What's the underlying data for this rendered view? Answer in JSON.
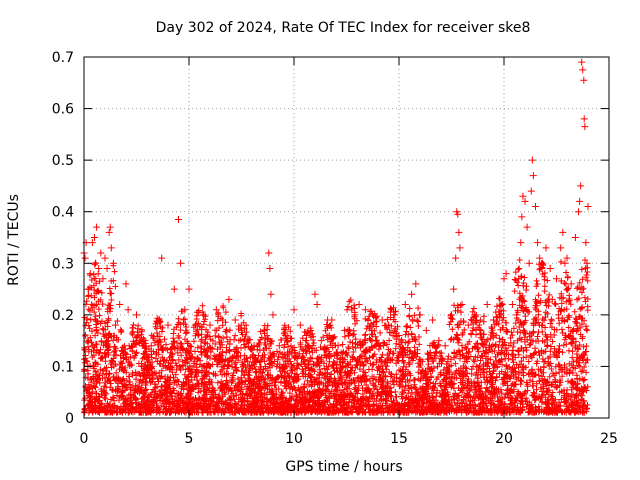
{
  "chart_data": {
    "type": "scatter",
    "title": "Day 302 of 2024, Rate Of TEC Index for receiver ske8",
    "xlabel": "GPS time / hours",
    "ylabel": "ROTI / TECUs",
    "xlim": [
      0,
      25
    ],
    "ylim": [
      0,
      0.7
    ],
    "x_ticks": [
      0,
      5,
      10,
      15,
      20,
      25
    ],
    "y_ticks": [
      0,
      0.1,
      0.2,
      0.3,
      0.4,
      0.5,
      0.6,
      0.7
    ],
    "x_tick_labels": [
      "0",
      "5",
      "10",
      "15",
      "20",
      "25"
    ],
    "y_tick_labels": [
      "0",
      "0.1",
      "0.2",
      "0.3",
      "0.4",
      "0.5",
      "0.6",
      "0.7"
    ],
    "grid": true,
    "marker": "+",
    "series": [
      {
        "name": "ROTI",
        "color": "#ff0000",
        "points": [
          [
            0.0,
            0.32
          ],
          [
            0.05,
            0.31
          ],
          [
            0.1,
            0.34
          ],
          [
            0.2,
            0.25
          ],
          [
            0.3,
            0.28
          ],
          [
            0.4,
            0.34
          ],
          [
            0.5,
            0.35
          ],
          [
            0.55,
            0.3
          ],
          [
            0.6,
            0.37
          ],
          [
            0.7,
            0.29
          ],
          [
            0.8,
            0.32
          ],
          [
            0.9,
            0.27
          ],
          [
            1.0,
            0.31
          ],
          [
            1.1,
            0.29
          ],
          [
            1.2,
            0.36
          ],
          [
            1.25,
            0.37
          ],
          [
            1.3,
            0.33
          ],
          [
            1.4,
            0.3
          ],
          [
            1.5,
            0.18
          ],
          [
            1.7,
            0.22
          ],
          [
            2.0,
            0.26
          ],
          [
            2.1,
            0.21
          ],
          [
            2.5,
            0.2
          ],
          [
            2.9,
            0.15
          ],
          [
            3.2,
            0.14
          ],
          [
            3.7,
            0.31
          ],
          [
            4.0,
            0.18
          ],
          [
            4.3,
            0.25
          ],
          [
            4.5,
            0.385
          ],
          [
            4.6,
            0.3
          ],
          [
            4.8,
            0.21
          ],
          [
            5.0,
            0.25
          ],
          [
            5.3,
            0.18
          ],
          [
            5.7,
            0.2
          ],
          [
            6.0,
            0.18
          ],
          [
            6.3,
            0.21
          ],
          [
            6.6,
            0.19
          ],
          [
            6.9,
            0.23
          ],
          [
            7.2,
            0.19
          ],
          [
            7.5,
            0.17
          ],
          [
            7.8,
            0.15
          ],
          [
            8.1,
            0.14
          ],
          [
            8.5,
            0.12
          ],
          [
            8.8,
            0.32
          ],
          [
            8.85,
            0.29
          ],
          [
            8.9,
            0.24
          ],
          [
            9.0,
            0.2
          ],
          [
            9.3,
            0.14
          ],
          [
            9.6,
            0.16
          ],
          [
            10.0,
            0.21
          ],
          [
            10.3,
            0.18
          ],
          [
            10.6,
            0.16
          ],
          [
            10.9,
            0.14
          ],
          [
            11.0,
            0.24
          ],
          [
            11.1,
            0.22
          ],
          [
            11.3,
            0.15
          ],
          [
            11.6,
            0.19
          ],
          [
            11.8,
            0.19
          ],
          [
            12.1,
            0.14
          ],
          [
            12.4,
            0.17
          ],
          [
            12.6,
            0.16
          ],
          [
            12.9,
            0.2
          ],
          [
            13.1,
            0.22
          ],
          [
            13.4,
            0.21
          ],
          [
            13.7,
            0.17
          ],
          [
            13.9,
            0.15
          ],
          [
            14.2,
            0.19
          ],
          [
            14.5,
            0.18
          ],
          [
            14.8,
            0.2
          ],
          [
            15.0,
            0.16
          ],
          [
            15.3,
            0.22
          ],
          [
            15.6,
            0.24
          ],
          [
            15.8,
            0.26
          ],
          [
            16.0,
            0.2
          ],
          [
            16.3,
            0.17
          ],
          [
            16.6,
            0.19
          ],
          [
            16.9,
            0.15
          ],
          [
            17.2,
            0.14
          ],
          [
            17.5,
            0.2
          ],
          [
            17.6,
            0.25
          ],
          [
            17.7,
            0.31
          ],
          [
            17.75,
            0.4
          ],
          [
            17.8,
            0.395
          ],
          [
            17.85,
            0.36
          ],
          [
            17.9,
            0.33
          ],
          [
            18.0,
            0.22
          ],
          [
            18.3,
            0.18
          ],
          [
            18.6,
            0.2
          ],
          [
            18.9,
            0.17
          ],
          [
            19.2,
            0.22
          ],
          [
            19.5,
            0.19
          ],
          [
            19.8,
            0.2
          ],
          [
            20.0,
            0.27
          ],
          [
            20.1,
            0.28
          ],
          [
            20.4,
            0.22
          ],
          [
            20.6,
            0.2
          ],
          [
            20.7,
            0.27
          ],
          [
            20.8,
            0.34
          ],
          [
            20.85,
            0.39
          ],
          [
            20.9,
            0.43
          ],
          [
            21.0,
            0.42
          ],
          [
            21.1,
            0.37
          ],
          [
            21.2,
            0.3
          ],
          [
            21.3,
            0.44
          ],
          [
            21.35,
            0.5
          ],
          [
            21.4,
            0.47
          ],
          [
            21.5,
            0.41
          ],
          [
            21.6,
            0.34
          ],
          [
            21.7,
            0.31
          ],
          [
            21.8,
            0.29
          ],
          [
            22.0,
            0.33
          ],
          [
            22.2,
            0.29
          ],
          [
            22.3,
            0.23
          ],
          [
            22.5,
            0.27
          ],
          [
            22.7,
            0.33
          ],
          [
            22.8,
            0.36
          ],
          [
            22.9,
            0.3
          ],
          [
            23.0,
            0.31
          ],
          [
            23.2,
            0.26
          ],
          [
            23.4,
            0.35
          ],
          [
            23.55,
            0.4
          ],
          [
            23.6,
            0.42
          ],
          [
            23.65,
            0.45
          ],
          [
            23.7,
            0.69
          ],
          [
            23.75,
            0.675
          ],
          [
            23.8,
            0.655
          ],
          [
            23.82,
            0.58
          ],
          [
            23.85,
            0.565
          ],
          [
            23.9,
            0.34
          ],
          [
            23.95,
            0.3
          ],
          [
            24.0,
            0.41
          ]
        ]
      }
    ],
    "background_noise": {
      "description": "dense band of points between 0 and ~0.25 across the full day",
      "x_range": [
        0,
        24
      ],
      "count": 5500
    }
  }
}
